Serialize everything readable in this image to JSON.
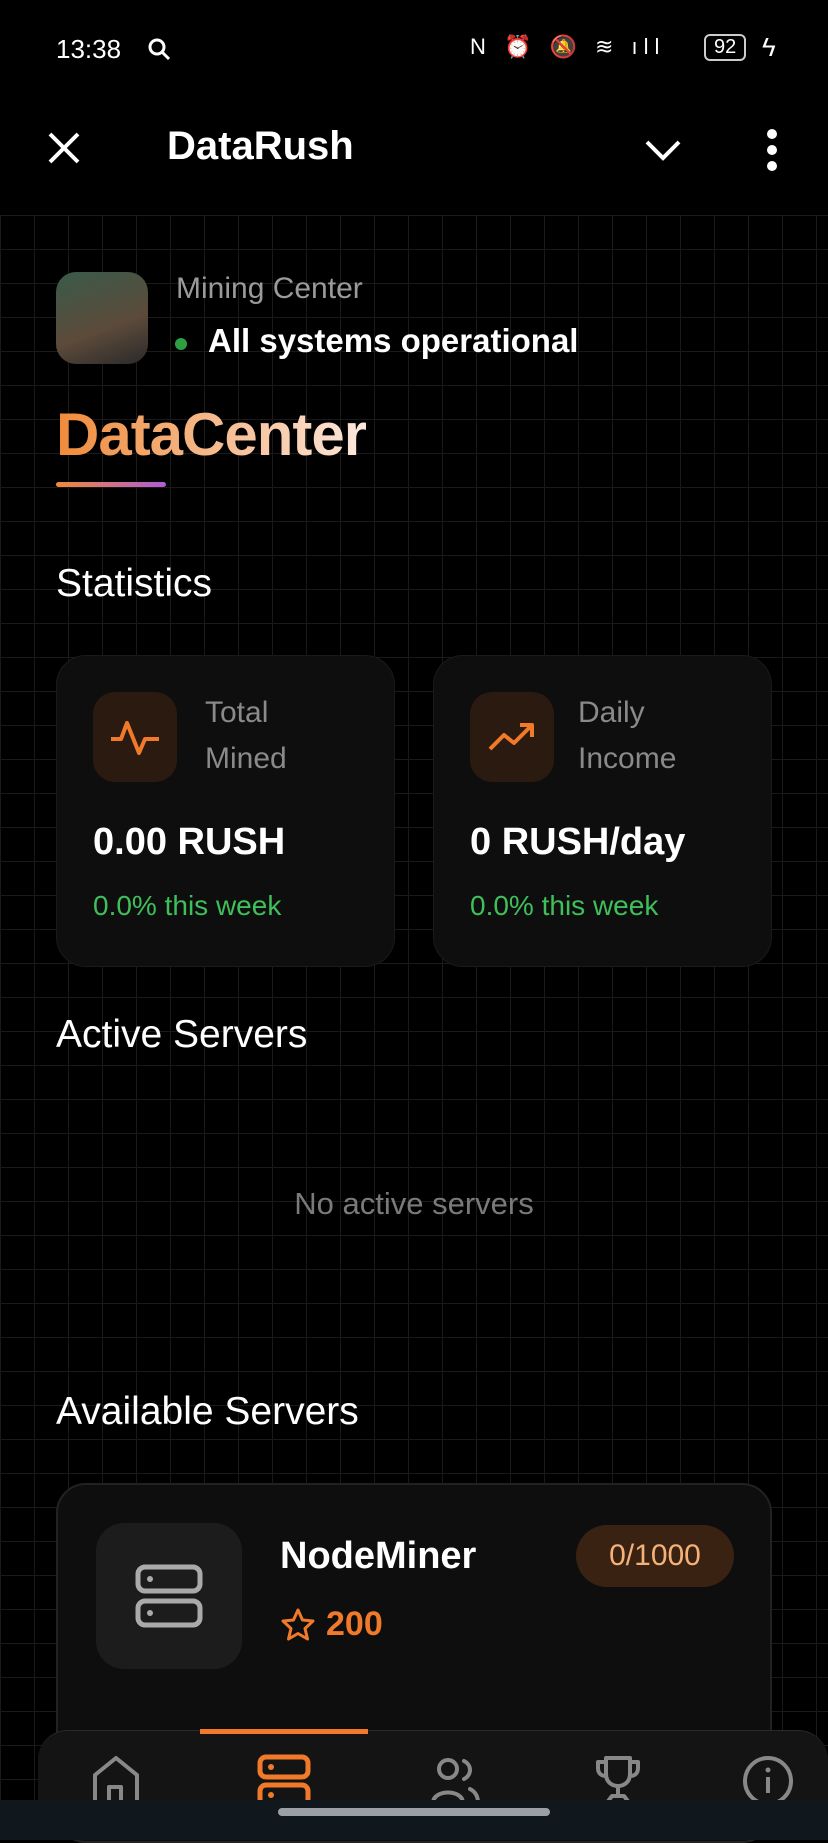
{
  "status_bar": {
    "time": "13:38",
    "battery": "92"
  },
  "header": {
    "title": "DataRush"
  },
  "profile": {
    "subtitle": "Mining Center",
    "status": "All systems operational"
  },
  "brand": {
    "title": "DataCenter"
  },
  "statistics": {
    "heading": "Statistics",
    "cards": [
      {
        "label_line1": "Total",
        "label_line2": "Mined",
        "value": "0.00 RUSH",
        "change": "0.0% this week",
        "icon": "activity-icon"
      },
      {
        "label_line1": "Daily",
        "label_line2": "Income",
        "value": "0 RUSH/day",
        "change": "0.0% this week",
        "icon": "trending-up-icon"
      }
    ]
  },
  "active_servers": {
    "heading": "Active Servers",
    "empty": "No active servers"
  },
  "available_servers": {
    "heading": "Available Servers",
    "items": [
      {
        "name": "NodeMiner",
        "price": "200",
        "capacity": "0/1000"
      }
    ]
  },
  "nav": {
    "items": [
      "home",
      "servers",
      "friends",
      "leaderboard",
      "info"
    ],
    "active": "servers"
  },
  "colors": {
    "accent": "#f07a2a",
    "success": "#3fbf5a",
    "background": "#000000"
  }
}
